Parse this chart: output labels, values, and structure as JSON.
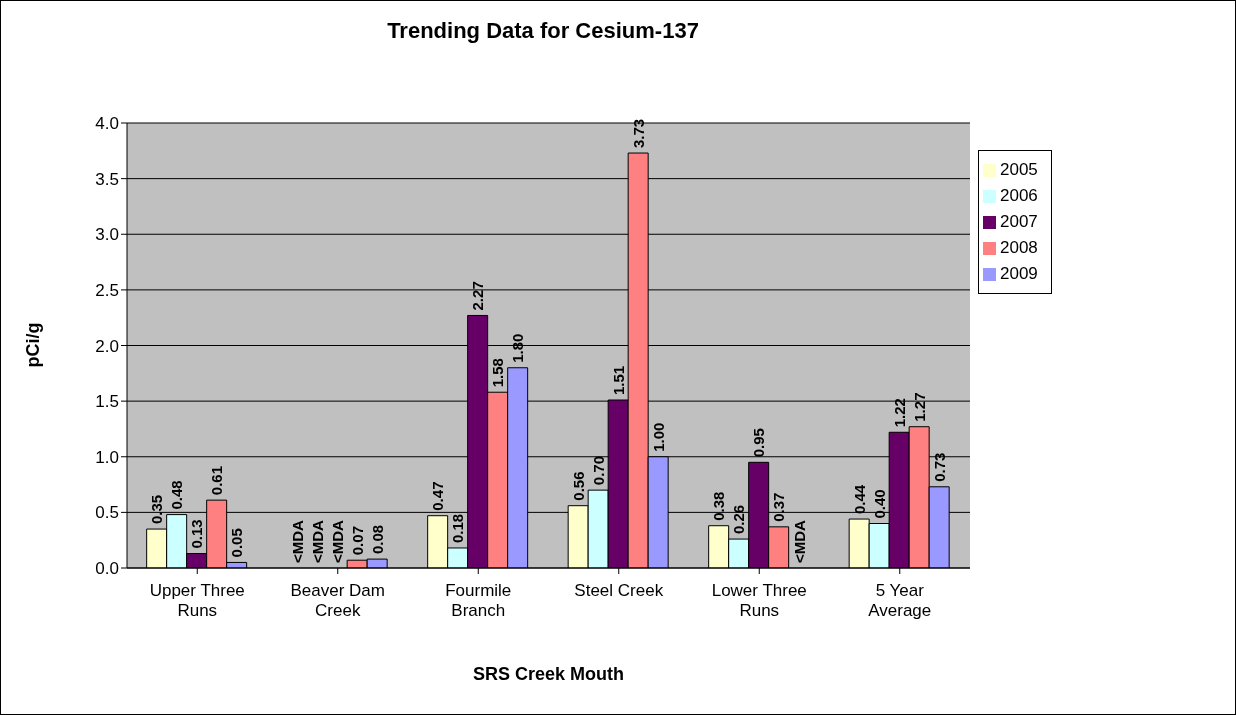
{
  "chart_data": {
    "type": "bar",
    "title": "Trending Data for Cesium-137",
    "xlabel": "SRS Creek Mouth",
    "ylabel": "pCi/g",
    "categories": [
      "Upper Three Runs",
      "Beaver Dam Creek",
      "Fourmile Branch",
      "Steel Creek",
      "Lower Three Runs",
      "5 Year Average"
    ],
    "series": [
      {
        "name": "2005",
        "color": "#ffffcc",
        "values": [
          0.35,
          null,
          0.47,
          0.56,
          0.38,
          0.44
        ],
        "value_labels": [
          "0.35",
          "<MDA",
          "0.47",
          "0.56",
          "0.38",
          "0.44"
        ]
      },
      {
        "name": "2006",
        "color": "#ccffff",
        "values": [
          0.48,
          null,
          0.18,
          0.7,
          0.26,
          0.4
        ],
        "value_labels": [
          "0.48",
          "<MDA",
          "0.18",
          "0.70",
          "0.26",
          "0.40"
        ]
      },
      {
        "name": "2007",
        "color": "#660066",
        "values": [
          0.13,
          null,
          2.27,
          1.51,
          0.95,
          1.22
        ],
        "value_labels": [
          "0.13",
          "<MDA",
          "2.27",
          "1.51",
          "0.95",
          "1.22"
        ]
      },
      {
        "name": "2008",
        "color": "#ff8080",
        "values": [
          0.61,
          0.07,
          1.58,
          3.73,
          0.37,
          1.27
        ],
        "value_labels": [
          "0.61",
          "0.07",
          "1.58",
          "3.73",
          "0.37",
          "1.27"
        ]
      },
      {
        "name": "2009",
        "color": "#9999ff",
        "values": [
          0.05,
          0.08,
          1.8,
          1.0,
          null,
          0.73
        ],
        "value_labels": [
          "0.05",
          "0.08",
          "1.80",
          "1.00",
          "<MDA",
          "0.73"
        ]
      }
    ],
    "ylim": [
      0,
      4
    ],
    "yticks": [
      {
        "value": 0,
        "label": "0.0"
      },
      {
        "value": 0.5,
        "label": "0.5"
      },
      {
        "value": 1,
        "label": "1.0"
      },
      {
        "value": 1.5,
        "label": "1.5"
      },
      {
        "value": 2,
        "label": "2.0"
      },
      {
        "value": 2.5,
        "label": "2.5"
      },
      {
        "value": 3,
        "label": "3.0"
      },
      {
        "value": 3.5,
        "label": "3.5"
      },
      {
        "value": 4,
        "label": "4.0"
      }
    ],
    "grid": "y",
    "legend": "right"
  }
}
